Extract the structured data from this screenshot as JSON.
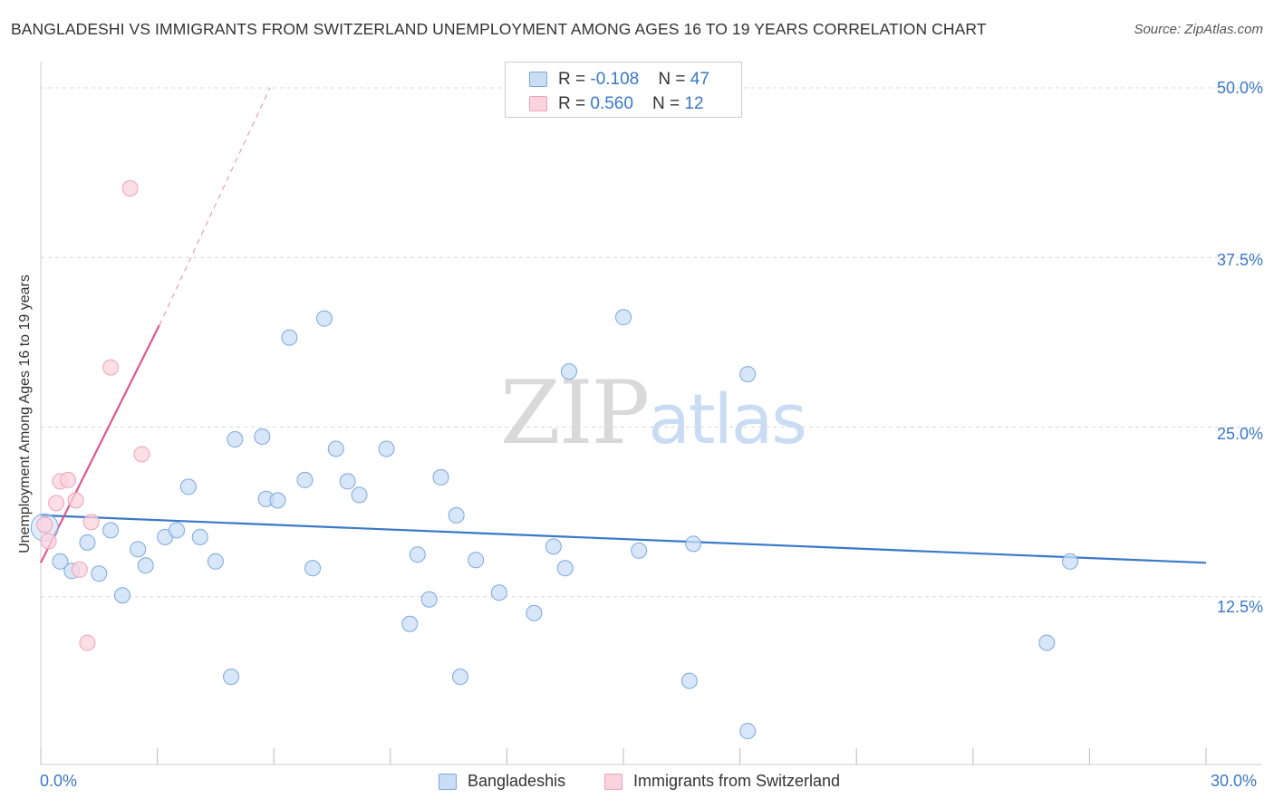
{
  "title": "BANGLADESHI VS IMMIGRANTS FROM SWITZERLAND UNEMPLOYMENT AMONG AGES 16 TO 19 YEARS CORRELATION CHART",
  "source": "Source: ZipAtlas.com",
  "watermark": {
    "zip": "ZIP",
    "atlas": "atlas"
  },
  "legend": {
    "rows": [
      {
        "r_label": "R = ",
        "r_value": "-0.108",
        "n_label": "N = ",
        "n_value": "47",
        "color": "#a9c8ef"
      },
      {
        "r_label": "R = ",
        "r_value": " 0.560",
        "n_label": "N = ",
        "n_value": "12",
        "color": "#f6b5c8"
      }
    ]
  },
  "bottom_legend": [
    {
      "label": "Bangladeshis",
      "color": "#a9c8ef"
    },
    {
      "label": "Immigrants from Switzerland",
      "color": "#f6b5c8"
    }
  ],
  "chart_data": {
    "type": "scatter",
    "title": "BANGLADESHI VS IMMIGRANTS FROM SWITZERLAND UNEMPLOYMENT AMONG AGES 16 TO 19 YEARS CORRELATION CHART",
    "xlabel": "",
    "ylabel": "Unemployment Among Ages 16 to 19 years",
    "xlim": [
      0,
      30
    ],
    "ylim": [
      0,
      50
    ],
    "x_tick_labels": [
      "0.0%",
      "30.0%"
    ],
    "y_tick_labels": [
      "12.5%",
      "25.0%",
      "37.5%",
      "50.0%"
    ],
    "y_ticks": [
      12.5,
      25,
      37.5,
      50
    ],
    "grid": true,
    "series": [
      {
        "name": "Bangladeshis",
        "color": "#3a78c9",
        "fill": "#c9ddf5",
        "r": -0.108,
        "n": 47,
        "trend": {
          "x0": 0,
          "y0": 18.5,
          "x1": 30,
          "y1": 15.0
        },
        "points": [
          [
            0.1,
            17.6
          ],
          [
            0.5,
            15.1
          ],
          [
            0.8,
            14.4
          ],
          [
            1.2,
            16.5
          ],
          [
            1.5,
            14.2
          ],
          [
            1.8,
            17.4
          ],
          [
            2.1,
            12.6
          ],
          [
            2.5,
            16.0
          ],
          [
            2.7,
            14.8
          ],
          [
            3.2,
            16.9
          ],
          [
            3.5,
            17.4
          ],
          [
            3.8,
            20.6
          ],
          [
            4.1,
            16.9
          ],
          [
            4.5,
            15.1
          ],
          [
            4.9,
            6.6
          ],
          [
            5.0,
            24.1
          ],
          [
            5.7,
            24.3
          ],
          [
            5.8,
            19.7
          ],
          [
            6.1,
            19.6
          ],
          [
            6.4,
            31.6
          ],
          [
            6.8,
            21.1
          ],
          [
            7.0,
            14.6
          ],
          [
            7.3,
            33.0
          ],
          [
            7.6,
            23.4
          ],
          [
            7.9,
            21.0
          ],
          [
            8.2,
            20.0
          ],
          [
            8.9,
            23.4
          ],
          [
            9.5,
            10.5
          ],
          [
            9.7,
            15.6
          ],
          [
            10.0,
            12.3
          ],
          [
            10.3,
            21.3
          ],
          [
            10.7,
            18.5
          ],
          [
            10.8,
            6.6
          ],
          [
            11.2,
            15.2
          ],
          [
            11.8,
            12.8
          ],
          [
            12.7,
            11.3
          ],
          [
            13.2,
            16.2
          ],
          [
            13.5,
            14.6
          ],
          [
            13.6,
            29.1
          ],
          [
            15.0,
            33.1
          ],
          [
            15.4,
            15.9
          ],
          [
            16.7,
            6.3
          ],
          [
            16.8,
            16.4
          ],
          [
            18.2,
            28.9
          ],
          [
            18.2,
            2.6
          ],
          [
            25.9,
            9.1
          ],
          [
            26.5,
            15.1
          ]
        ]
      },
      {
        "name": "Immigrants from Switzerland",
        "color": "#e0588e",
        "fill": "#fbd3df",
        "r": 0.56,
        "n": 12,
        "trend": {
          "x0": 0,
          "y0": 15.0,
          "x1": 3.05,
          "y1": 32.5,
          "dash_x1": 5.9,
          "dash_y1": 50.0
        },
        "points": [
          [
            0.1,
            17.8
          ],
          [
            0.2,
            16.6
          ],
          [
            0.4,
            19.4
          ],
          [
            0.5,
            21.0
          ],
          [
            0.7,
            21.1
          ],
          [
            0.9,
            19.6
          ],
          [
            1.0,
            14.5
          ],
          [
            1.2,
            9.1
          ],
          [
            1.3,
            18.0
          ],
          [
            1.8,
            29.4
          ],
          [
            2.3,
            42.6
          ],
          [
            2.6,
            23.0
          ]
        ]
      }
    ]
  }
}
